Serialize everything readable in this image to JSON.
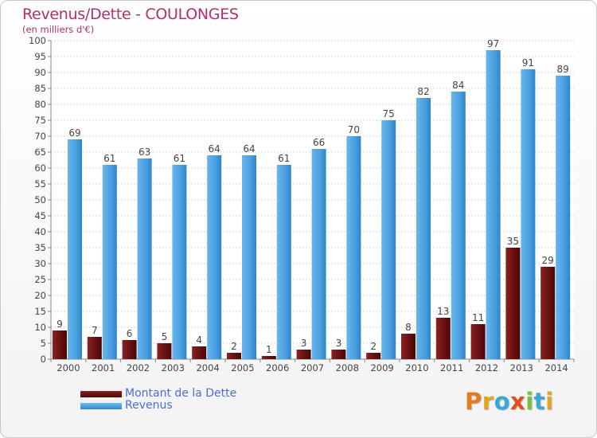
{
  "header": {
    "title": "Revenus/Dette - COULONGES",
    "subtitle": "(en milliers d'€)"
  },
  "legend": {
    "items": [
      {
        "label": "Montant de la Dette",
        "color": "#6b1212"
      },
      {
        "label": "Revenus",
        "color": "#4fa3e3"
      }
    ]
  },
  "logo": {
    "text": "Proxiti",
    "letters": [
      {
        "ch": "P",
        "color": "#e37b1f"
      },
      {
        "ch": "r",
        "color": "#e3a51f"
      },
      {
        "ch": "o",
        "color": "#3aa7d9"
      },
      {
        "ch": "x",
        "color": "#e3501f"
      },
      {
        "ch": "i",
        "color": "#7cbf3a"
      },
      {
        "ch": "t",
        "color": "#3aa7d9"
      },
      {
        "ch": "i",
        "color": "#e3a51f"
      }
    ]
  },
  "chart_data": {
    "type": "bar",
    "title": "Revenus/Dette - COULONGES",
    "ylabel": "(en milliers d'€)",
    "xlabel": "",
    "ylim": [
      0,
      100
    ],
    "ytick_step": 5,
    "grid": true,
    "categories": [
      "2000",
      "2001",
      "2002",
      "2003",
      "2004",
      "2005",
      "2006",
      "2007",
      "2008",
      "2009",
      "2010",
      "2011",
      "2012",
      "2013",
      "2014"
    ],
    "series": [
      {
        "name": "Montant de la Dette",
        "color": "#6b1212",
        "values": [
          9,
          7,
          6,
          5,
          4,
          2,
          1,
          3,
          3,
          2,
          8,
          13,
          11,
          35,
          29
        ]
      },
      {
        "name": "Revenus",
        "color": "#4fa3e3",
        "values": [
          69,
          61,
          63,
          61,
          64,
          64,
          61,
          66,
          70,
          75,
          82,
          84,
          97,
          91,
          89
        ]
      }
    ]
  }
}
